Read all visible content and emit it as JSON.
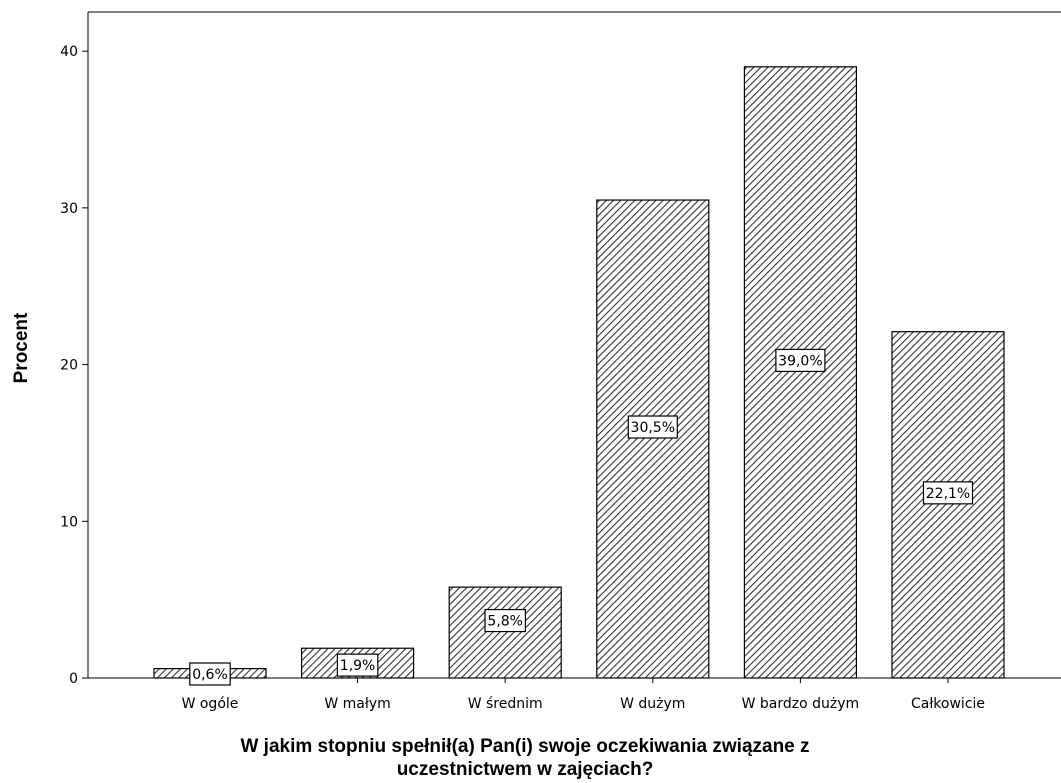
{
  "chart_data": {
    "type": "bar",
    "title": "",
    "xlabel_lines": [
      "W jakim stopniu spełnił(a) Pan(i) swoje oczekiwania związane z",
      "uczestnictwem w zajęciach?"
    ],
    "ylabel": "Procent",
    "categories": [
      "W ogóle",
      "W małym",
      "W średnim",
      "W dużym",
      "W bardzo dużym",
      "Całkowicie"
    ],
    "values": [
      0.6,
      1.9,
      5.8,
      30.5,
      39.0,
      22.1
    ],
    "data_labels": [
      "0,6%",
      "1,9%",
      "5,8%",
      "30,5%",
      "39,0%",
      "22,1%"
    ],
    "y_ticks": [
      0,
      10,
      20,
      30,
      40
    ],
    "ylim": [
      0,
      42.5
    ],
    "grid": false,
    "bar_fill": "diagonal-hatch",
    "colors": {
      "bar_stroke": "#000000",
      "hatch": "#333333",
      "background": "#ffffff"
    }
  }
}
